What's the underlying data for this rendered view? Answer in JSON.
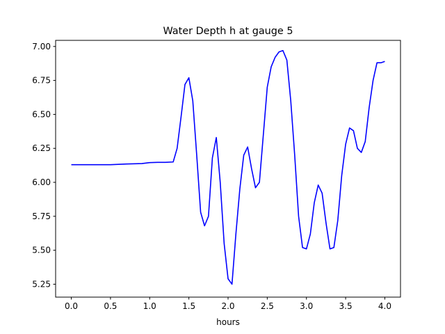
{
  "chart_data": {
    "type": "line",
    "title": "Water Depth h at gauge 5",
    "xlabel": "hours",
    "ylabel": "",
    "xlim": [
      -0.2,
      4.2
    ],
    "ylim": [
      5.155,
      7.045
    ],
    "xticks": [
      0.0,
      0.5,
      1.0,
      1.5,
      2.0,
      2.5,
      3.0,
      3.5,
      4.0
    ],
    "xtick_labels": [
      "0.0",
      "0.5",
      "1.0",
      "1.5",
      "2.0",
      "2.5",
      "3.0",
      "3.5",
      "4.0"
    ],
    "yticks": [
      5.25,
      5.5,
      5.75,
      6.0,
      6.25,
      6.5,
      6.75,
      7.0
    ],
    "ytick_labels": [
      "5.25",
      "5.50",
      "5.75",
      "6.00",
      "6.25",
      "6.50",
      "6.75",
      "7.00"
    ],
    "grid": false,
    "series": [
      {
        "color": "#0000ff",
        "x": [
          0.0,
          0.3,
          0.5,
          0.7,
          0.9,
          1.0,
          1.1,
          1.2,
          1.3,
          1.35,
          1.4,
          1.45,
          1.5,
          1.55,
          1.6,
          1.65,
          1.7,
          1.75,
          1.8,
          1.85,
          1.9,
          1.95,
          2.0,
          2.05,
          2.1,
          2.15,
          2.2,
          2.25,
          2.3,
          2.35,
          2.4,
          2.45,
          2.5,
          2.55,
          2.6,
          2.65,
          2.7,
          2.75,
          2.8,
          2.85,
          2.9,
          2.95,
          3.0,
          3.05,
          3.1,
          3.15,
          3.2,
          3.25,
          3.3,
          3.35,
          3.4,
          3.45,
          3.5,
          3.55,
          3.6,
          3.65,
          3.7,
          3.75,
          3.8,
          3.85,
          3.9,
          3.95,
          4.0
        ],
        "y": [
          6.13,
          6.13,
          6.13,
          6.135,
          6.138,
          6.145,
          6.147,
          6.147,
          6.15,
          6.25,
          6.48,
          6.72,
          6.77,
          6.6,
          6.2,
          5.78,
          5.68,
          5.75,
          6.18,
          6.33,
          6.0,
          5.55,
          5.29,
          5.25,
          5.62,
          5.95,
          6.2,
          6.26,
          6.1,
          5.96,
          6.0,
          6.35,
          6.7,
          6.85,
          6.92,
          6.96,
          6.97,
          6.9,
          6.6,
          6.2,
          5.75,
          5.52,
          5.51,
          5.62,
          5.85,
          5.98,
          5.92,
          5.7,
          5.51,
          5.52,
          5.72,
          6.05,
          6.28,
          6.4,
          6.38,
          6.25,
          6.22,
          6.3,
          6.55,
          6.75,
          6.88,
          6.88,
          6.89
        ]
      }
    ]
  }
}
